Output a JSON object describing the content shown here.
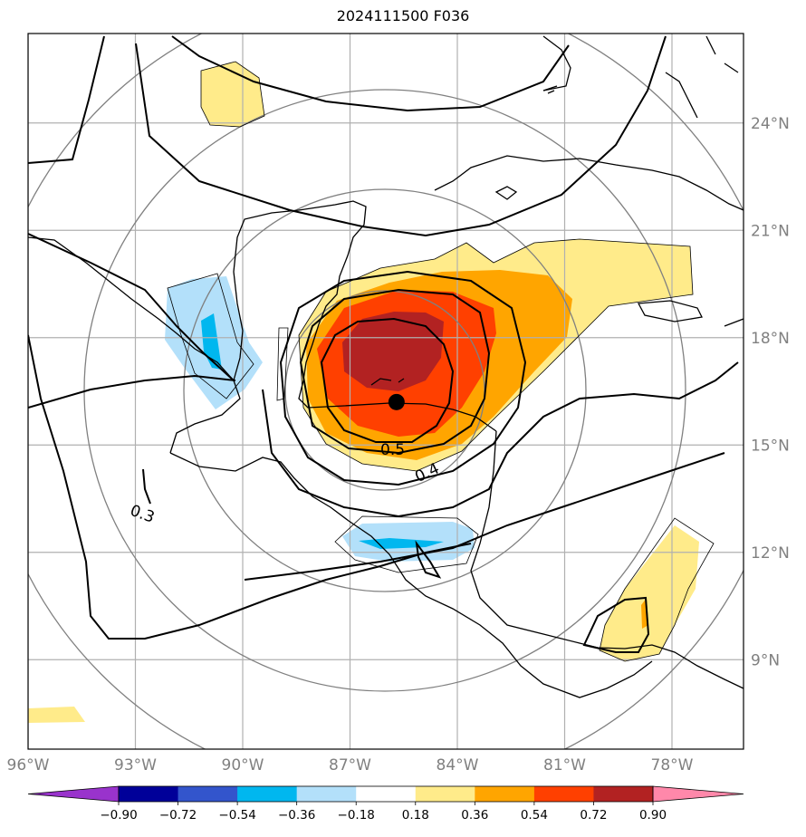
{
  "title": "2024111500 F036",
  "map": {
    "lon_range": [
      -96,
      -76
    ],
    "lat_range": [
      6.5,
      26.5
    ],
    "lon_ticks": [
      "96°W",
      "93°W",
      "90°W",
      "87°W",
      "84°W",
      "81°W",
      "78°W"
    ],
    "lat_ticks": [
      "9°N",
      "12°N",
      "15°N",
      "18°N",
      "21°N",
      "24°N"
    ],
    "grid": true,
    "storm_center": {
      "lon": -85.7,
      "lat": 16.2
    },
    "contour_labels": [
      "0.5",
      "0.4",
      "0.3"
    ]
  },
  "colorbar": {
    "ticks": [
      "−0.90",
      "−0.72",
      "−0.54",
      "−0.36",
      "−0.18",
      "0.18",
      "0.36",
      "0.54",
      "0.72",
      "0.90"
    ],
    "colors": [
      "#9933cc",
      "#000099",
      "#3355cc",
      "#00b7ef",
      "#b3e0fa",
      "#ffffff",
      "#ffeb8a",
      "#ffa500",
      "#ff4000",
      "#b22222",
      "#ff88aa"
    ]
  }
}
